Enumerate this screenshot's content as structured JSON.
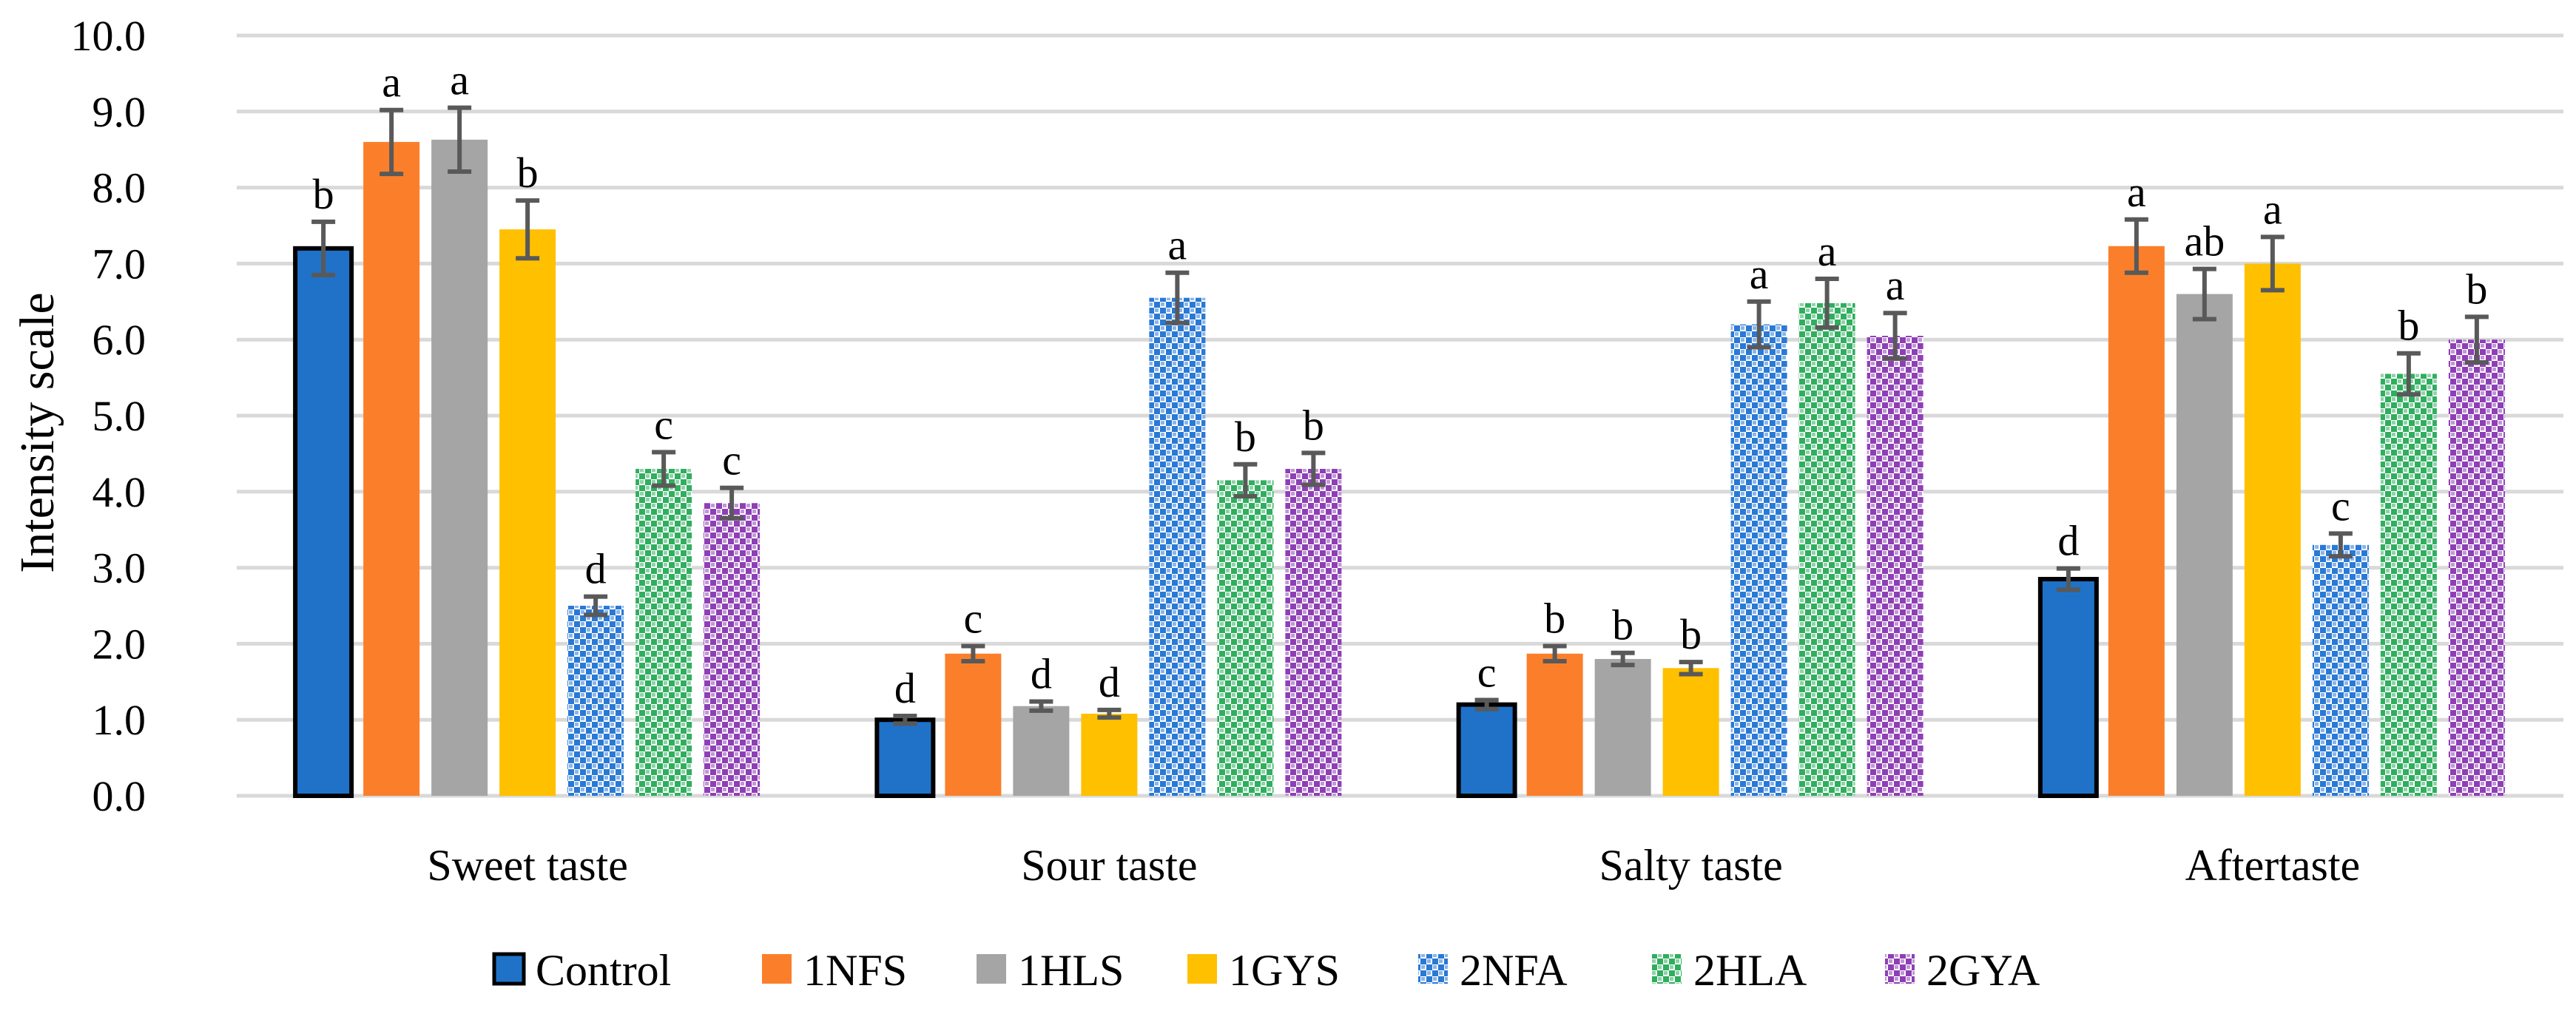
{
  "chart_data": {
    "type": "bar",
    "title": "",
    "xlabel": "",
    "ylabel": "Intensity scale",
    "ylim": [
      0,
      10
    ],
    "yticks": [
      "0.0",
      "1.0",
      "2.0",
      "3.0",
      "4.0",
      "5.0",
      "6.0",
      "7.0",
      "8.0",
      "9.0",
      "10.0"
    ],
    "grid": true,
    "legend_position": "bottom",
    "categories": [
      "Sweet taste",
      "Sour taste",
      "Salty taste",
      "Aftertaste"
    ],
    "series": [
      {
        "name": "Control",
        "color": "#1f72c8",
        "pattern": "solid-outlined",
        "values": [
          7.2,
          1.0,
          1.2,
          2.85
        ],
        "errors": [
          0.35,
          0.05,
          0.06,
          0.14
        ],
        "letters": [
          "b",
          "d",
          "c",
          "d"
        ]
      },
      {
        "name": "1NFS",
        "color": "#fb7f2b",
        "pattern": "solid",
        "values": [
          8.6,
          1.87,
          1.87,
          7.23
        ],
        "errors": [
          0.42,
          0.1,
          0.1,
          0.35
        ],
        "letters": [
          "a",
          "c",
          "b",
          "a"
        ]
      },
      {
        "name": "1HLS",
        "color": "#a5a5a5",
        "pattern": "solid",
        "values": [
          8.63,
          1.18,
          1.8,
          6.6
        ],
        "errors": [
          0.42,
          0.06,
          0.08,
          0.33
        ],
        "letters": [
          "a",
          "d",
          "b",
          "ab"
        ]
      },
      {
        "name": "1GYS",
        "color": "#ffc000",
        "pattern": "solid",
        "values": [
          7.45,
          1.08,
          1.68,
          7.0
        ],
        "errors": [
          0.38,
          0.05,
          0.08,
          0.35
        ],
        "letters": [
          "b",
          "d",
          "b",
          "a"
        ]
      },
      {
        "name": "2NFA",
        "color": "#2979d6",
        "pattern": "checker",
        "values": [
          2.5,
          6.55,
          6.2,
          3.3
        ],
        "errors": [
          0.12,
          0.33,
          0.3,
          0.15
        ],
        "letters": [
          "d",
          "a",
          "a",
          "c"
        ]
      },
      {
        "name": "2HLA",
        "color": "#2fae5e",
        "pattern": "checker",
        "values": [
          4.3,
          4.15,
          6.48,
          5.55
        ],
        "errors": [
          0.22,
          0.21,
          0.32,
          0.27
        ],
        "letters": [
          "c",
          "b",
          "a",
          "b"
        ]
      },
      {
        "name": "2GYA",
        "color": "#8e3fb5",
        "pattern": "checker",
        "values": [
          3.85,
          4.3,
          6.05,
          6.0
        ],
        "errors": [
          0.2,
          0.21,
          0.3,
          0.3
        ],
        "letters": [
          "c",
          "b",
          "a",
          "b"
        ]
      }
    ]
  }
}
